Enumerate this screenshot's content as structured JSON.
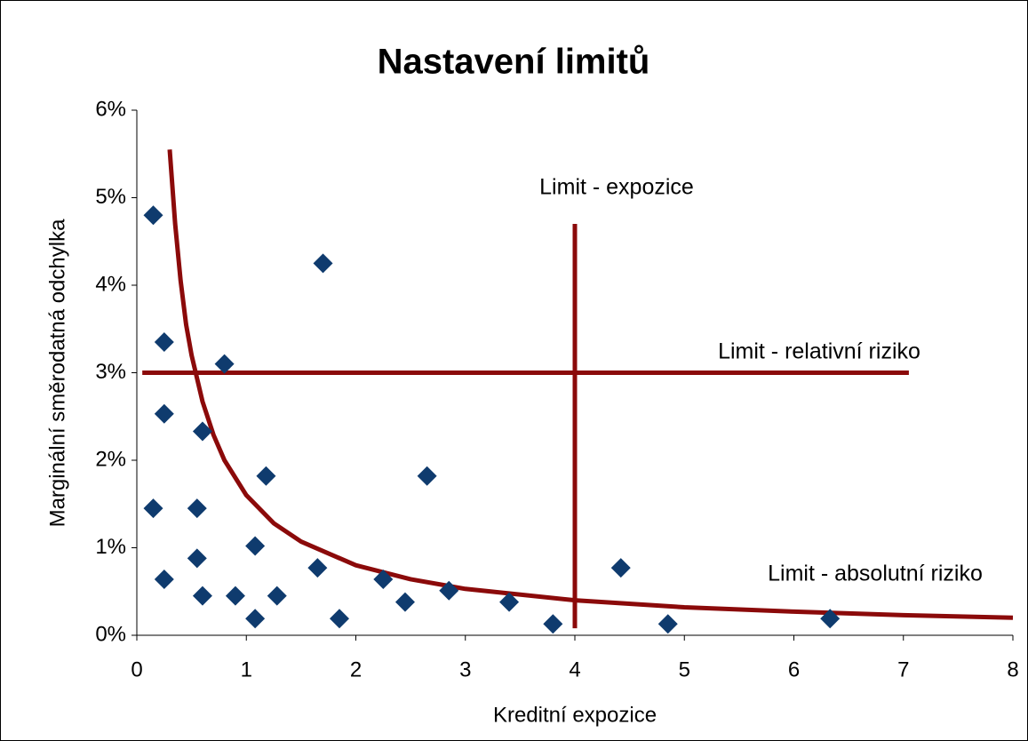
{
  "chart_data": {
    "type": "scatter",
    "title": "Nastavení limitů",
    "x_label": "Kreditní expozice",
    "y_label": "Marginální směrodatná odchylka",
    "xlim": [
      0,
      8
    ],
    "ylim": [
      0,
      6
    ],
    "xticks": [
      0,
      1,
      2,
      3,
      4,
      5,
      6,
      7,
      8
    ],
    "yticks": [
      {
        "value": 0,
        "label": "0%"
      },
      {
        "value": 1,
        "label": "1%"
      },
      {
        "value": 2,
        "label": "2%"
      },
      {
        "value": 3,
        "label": "3%"
      },
      {
        "value": 4,
        "label": "4%"
      },
      {
        "value": 5,
        "label": "5%"
      },
      {
        "value": 6,
        "label": "6%"
      }
    ],
    "annotations": [
      "Limit - expozice",
      "Limit - relativní riziko",
      "Limit - absolutní riziko"
    ],
    "series": [
      {
        "type": "scatter",
        "color": "#0f3b6e",
        "x": [
          0.15,
          0.25,
          0.8,
          1.7,
          0.25,
          0.6,
          1.18,
          2.65,
          0.15,
          0.55,
          0.55,
          1.08,
          0.25,
          0.6,
          0.9,
          1.08,
          1.28,
          1.65,
          1.85,
          2.25,
          2.45,
          2.85,
          3.4,
          3.8,
          4.42,
          4.85,
          6.33
        ],
        "values": [
          4.8,
          3.35,
          3.1,
          4.25,
          2.53,
          2.33,
          1.82,
          1.82,
          1.45,
          1.45,
          0.88,
          1.02,
          0.64,
          0.45,
          0.45,
          0.19,
          0.45,
          0.77,
          0.19,
          0.64,
          0.38,
          0.51,
          0.38,
          0.13,
          0.77,
          0.13,
          0.19
        ]
      },
      {
        "type": "line",
        "color": "#8b0a0a",
        "x": [
          0.3,
          0.35,
          0.4,
          0.45,
          0.5,
          0.6,
          0.7,
          0.8,
          1,
          1.25,
          1.5,
          2,
          2.5,
          3,
          4,
          5,
          6,
          7,
          8
        ],
        "values": [
          5.55,
          4.7,
          4.05,
          3.55,
          3.2,
          2.67,
          2.29,
          2,
          1.6,
          1.28,
          1.07,
          0.8,
          0.64,
          0.53,
          0.4,
          0.32,
          0.27,
          0.23,
          0.2
        ]
      },
      {
        "type": "line",
        "color": "#8b0a0a",
        "x": [
          0.05,
          7.05
        ],
        "values": [
          3,
          3
        ]
      },
      {
        "type": "line",
        "color": "#8b0a0a",
        "x": [
          4,
          4
        ],
        "values": [
          0.08,
          4.7
        ]
      }
    ]
  }
}
